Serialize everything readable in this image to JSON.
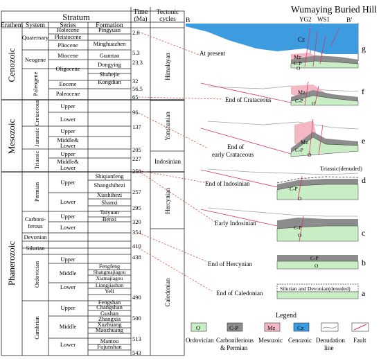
{
  "header": {
    "stratum": "Stratum",
    "erathem": "Erathem",
    "system": "System",
    "series": "Series",
    "formation": "Formation",
    "time": "Time",
    "time_unit": "(Ma)",
    "tectonic": "Tectonic",
    "cycles": "cycles"
  },
  "erathems": [
    "Cenozoic",
    "Mesozoic",
    "Phanerozoic"
  ],
  "systems": {
    "quaternary": "Quaternary",
    "neogene": "Neogene",
    "paleogene": "Paleogene",
    "cretaceous": "Cretaceous",
    "jurassic": "Jurassic",
    "triassic": "Triassic",
    "permian": "Permian",
    "carboniferous_1": "Carboni-",
    "carboniferous_2": "ferous",
    "devonian": "Devonian",
    "silurian": "Silurian",
    "ordovician": "Ordovician",
    "cambrian": "Cambrian"
  },
  "series": {
    "holocene": "Holecene",
    "pleistocene": "Pleistocene",
    "pliocene": "Pliocene",
    "miocene": "Miocene",
    "oligocene": "Oligocene",
    "eocene": "Eocene",
    "paleocene": "Paleocene",
    "k_upper": "Upper",
    "k_lower": "Lower",
    "j_upper": "Upper",
    "j_middle_1": "Middle&",
    "j_middle_2": "Lower",
    "t_upper": "Upper",
    "t_middle_1": "Middle&",
    "t_middle_2": "Lower",
    "p_upper": "Upper",
    "p_lower": "Lower",
    "c_upper": "Upper",
    "c_lower": "Lower",
    "o_upper": "Upper",
    "o_middle": "Middle",
    "o_lower": "Lower",
    "e_upper": "Upper",
    "e_middle": "Middle",
    "e_lower": "Lower"
  },
  "formations": {
    "pingyuan": "Pingyuan",
    "minghuazhen": "Minghuazhen",
    "guantao": "Guantao",
    "dongying": "Dongying",
    "shahejie": "Shahejie",
    "kongdian": "Kongdian",
    "shiqianfeng": "Shiqianfeng",
    "shangshihezi": "Shangshihezi",
    "xiashihezi": "Xiashihezi",
    "shanxi": "Shanxi",
    "taiyuan": "Taiyuan",
    "benxi": "Benxi",
    "fengfeng": "Fengfeng",
    "shangmajiagou": "Shangmajiagou",
    "xiamajiagou": "Xiamajiagou",
    "liangjiashan": "Liangjiashan",
    "yeli": "Yeli",
    "fengshan": "Fengshan",
    "changshan": "Changshan",
    "gushan": "Gushan",
    "zhangxia": "Zhangxia",
    "xuzhuang": "Xuzhuang",
    "maozhuang": "Maozhuang",
    "mantou": "Mantou",
    "fujunshan": "Fujunshan"
  },
  "ages": {
    "a2_6": "2.6",
    "a5_3": "5.3",
    "a23_3": "23.3",
    "a32": "32",
    "a56_5": "56.5",
    "a65": "65",
    "a96": "96",
    "a137": "137",
    "a205": "205",
    "a227": "227",
    "a250": "250",
    "a257": "257",
    "a295": "295",
    "a320": "320",
    "a354": "354",
    "a410": "410",
    "a438": "438",
    "a490": "490",
    "a500": "500",
    "a513": "513",
    "a543": "543"
  },
  "cycles": {
    "himalayan": "Himalayan",
    "yanshanian": "Yanshanian",
    "indosinian": "Indosinian",
    "hercynian": "Hercynian",
    "caledonian": "Caledonian"
  },
  "section": {
    "title": "Wumaying Buried Hill",
    "b": "B",
    "b_prime": "B'",
    "yg2": "YG2",
    "ws1": "WS1"
  },
  "stages": [
    {
      "id": "g",
      "label": "At present"
    },
    {
      "id": "f",
      "label": "End of  Crataceous"
    },
    {
      "id": "e",
      "label_1": "End of",
      "label_2": "early Crataceous"
    },
    {
      "id": "d",
      "label": "End of Indosinian",
      "note": "Triassic(denuded)"
    },
    {
      "id": "c",
      "label": "Early Indosinian"
    },
    {
      "id": "b",
      "label": "End of Hercynian"
    },
    {
      "id": "a",
      "label": "End of Caledonian",
      "note": "Silurian and Devonian(denuded)"
    }
  ],
  "unit_labels": {
    "cz": "Cz",
    "mz": "Mz",
    "cp": "C-P",
    "o": "O"
  },
  "legend": {
    "title": "Legend",
    "items": [
      {
        "code": "O",
        "label_1": "Ordovician",
        "label_2": "",
        "color": "#c9eec6"
      },
      {
        "code": "C-P",
        "label_1": "Carboniferious",
        "label_2": "& Permian",
        "color": "#8c8c8c"
      },
      {
        "code": "Mz",
        "label_1": "Mesozoic",
        "label_2": "",
        "color": "#f4b8c4"
      },
      {
        "code": "Cz",
        "label_1": "Cenozoic",
        "label_2": "",
        "color": "#3d9be0"
      },
      {
        "code": "",
        "label_1": "Denudation",
        "label_2": "line",
        "color": "#9aa3ad"
      },
      {
        "code": "",
        "label_1": "Fault",
        "label_2": "",
        "color": "#d6336c"
      }
    ]
  },
  "colors": {
    "ordovician": "#c9eec6",
    "carb_perm": "#8c8c8c",
    "mesozoic": "#f4b8c4",
    "cenozoic": "#3d9be0",
    "fault": "#d6336c",
    "denudation": "#9aa3ad",
    "guide": "#d9534f"
  }
}
